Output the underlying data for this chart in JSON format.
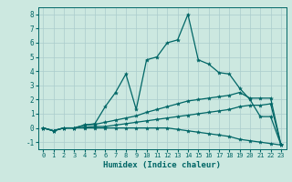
{
  "xlabel": "Humidex (Indice chaleur)",
  "bg_color": "#cce8e0",
  "line_color": "#006666",
  "grid_color": "#aacccc",
  "xlim": [
    -0.5,
    23.5
  ],
  "ylim": [
    -1.5,
    8.5
  ],
  "xticks": [
    0,
    1,
    2,
    3,
    4,
    5,
    6,
    7,
    8,
    9,
    10,
    11,
    12,
    13,
    14,
    15,
    16,
    17,
    18,
    19,
    20,
    21,
    22,
    23
  ],
  "yticks": [
    -1,
    0,
    1,
    2,
    3,
    4,
    5,
    6,
    7,
    8
  ],
  "series": [
    [
      0.0,
      -0.2,
      0.0,
      0.0,
      0.2,
      0.3,
      1.5,
      2.5,
      3.8,
      1.3,
      4.8,
      5.0,
      6.0,
      6.2,
      8.0,
      4.8,
      4.5,
      3.9,
      3.8,
      2.8,
      2.0,
      0.8,
      0.8,
      -1.2
    ],
    [
      0.0,
      -0.2,
      0.0,
      0.0,
      0.2,
      0.25,
      0.4,
      0.55,
      0.7,
      0.85,
      1.1,
      1.3,
      1.5,
      1.7,
      1.9,
      2.0,
      2.1,
      2.2,
      2.3,
      2.5,
      2.1,
      2.1,
      2.1,
      -1.2
    ],
    [
      0.0,
      -0.2,
      0.0,
      0.0,
      0.05,
      0.1,
      0.1,
      0.2,
      0.3,
      0.4,
      0.5,
      0.6,
      0.7,
      0.8,
      0.9,
      1.0,
      1.1,
      1.2,
      1.3,
      1.5,
      1.6,
      1.6,
      1.7,
      -1.2
    ],
    [
      0.0,
      -0.2,
      0.0,
      0.0,
      0.0,
      0.0,
      0.0,
      0.0,
      0.0,
      0.0,
      0.0,
      0.0,
      0.0,
      -0.1,
      -0.2,
      -0.3,
      -0.4,
      -0.5,
      -0.6,
      -0.8,
      -0.9,
      -1.0,
      -1.1,
      -1.2
    ]
  ]
}
